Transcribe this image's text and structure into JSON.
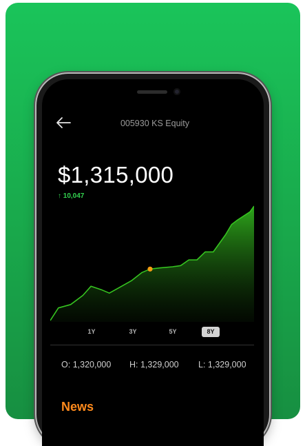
{
  "header": {
    "title": "005930 KS Equity",
    "back_icon": "arrow-left-icon"
  },
  "quote": {
    "price": "$1,315,000",
    "change_arrow": "↑",
    "change_value": "10,047"
  },
  "ranges": [
    {
      "label": "1Y",
      "active": false
    },
    {
      "label": "3Y",
      "active": false
    },
    {
      "label": "5Y",
      "active": false
    },
    {
      "label": "8Y",
      "active": true
    }
  ],
  "stats": {
    "open_label": "O:",
    "open_value": "1,320,000",
    "high_label": "H:",
    "high_value": "1,329,000",
    "low_label": "L:",
    "low_value": "1,329,000"
  },
  "news": {
    "title": "News"
  },
  "colors": {
    "background_green": "#19b350",
    "chart_line": "#36c420",
    "marker": "#f39c12",
    "news_accent": "#ff8a1c",
    "change_up": "#33d14f"
  },
  "chart_data": {
    "type": "area",
    "title": "",
    "xlabel": "",
    "ylabel": "",
    "x": [
      0,
      4,
      10,
      16,
      20,
      25,
      29,
      34,
      40,
      45,
      49,
      54,
      60,
      64,
      68,
      72,
      76,
      80,
      86,
      89,
      92,
      98,
      100
    ],
    "y": [
      0,
      11,
      14,
      22,
      30,
      27,
      24,
      29,
      35,
      42,
      45,
      46,
      47,
      48,
      53,
      53,
      60,
      60,
      75,
      84,
      88,
      95,
      100
    ],
    "marker_index": 10,
    "grid": false,
    "legend": "none"
  }
}
